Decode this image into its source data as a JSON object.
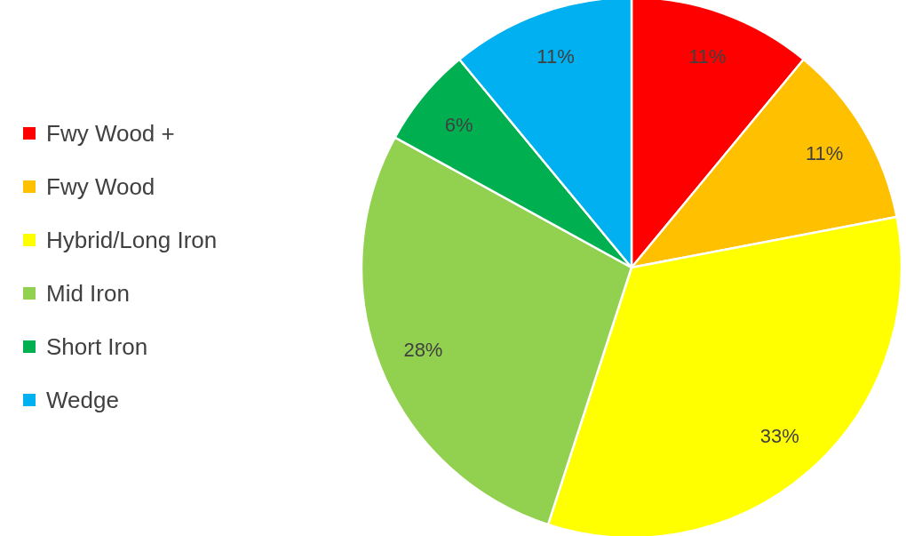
{
  "chart_data": {
    "type": "pie",
    "categories": [
      "Fwy Wood +",
      "Fwy Wood",
      "Hybrid/Long Iron",
      "Mid Iron",
      "Short Iron",
      "Wedge"
    ],
    "values": [
      11,
      11,
      33,
      28,
      6,
      11
    ],
    "colors": [
      "#ff0000",
      "#ffc000",
      "#ffff00",
      "#92d050",
      "#00b050",
      "#00b0f0"
    ],
    "value_labels": [
      "11%",
      "11%",
      "33%",
      "28%",
      "6%",
      "11%"
    ],
    "legend": "left"
  }
}
